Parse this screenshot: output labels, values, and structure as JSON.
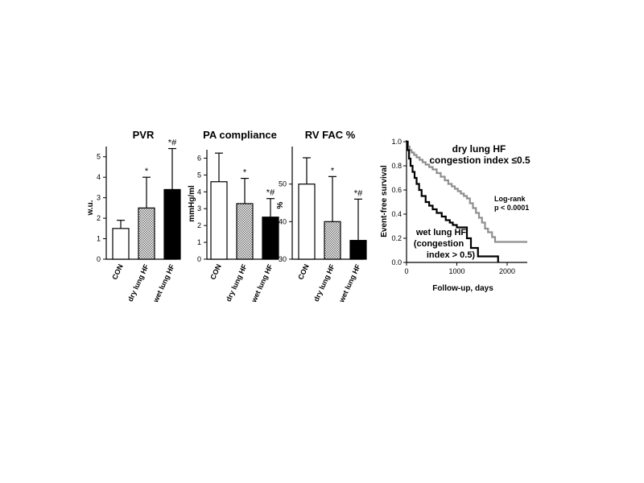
{
  "colors": {
    "con": "#ffffff",
    "dry": "#9a9a9a",
    "wet": "#000000",
    "survival_dry": "#8f8f8f",
    "survival_wet": "#000000"
  },
  "chart_data": [
    {
      "type": "bar",
      "title": "PVR",
      "ylabel": "w.u.",
      "categories": [
        "CON",
        "dry lung HF",
        "wet lung HF"
      ],
      "values": [
        1.5,
        2.5,
        3.4
      ],
      "errors": [
        0.4,
        1.5,
        2.0
      ],
      "significance": [
        "",
        "*",
        "*#"
      ],
      "ylim": [
        0,
        5.5
      ],
      "yticks": [
        0,
        1,
        2,
        3,
        4,
        5
      ],
      "fills": [
        "white",
        "hatched",
        "black"
      ]
    },
    {
      "type": "bar",
      "title": "PA compliance",
      "ylabel": "mmHg/ml",
      "categories": [
        "CON",
        "dry lung HF",
        "wet lung HF"
      ],
      "values": [
        4.6,
        3.3,
        2.5
      ],
      "errors": [
        1.7,
        1.5,
        1.1
      ],
      "significance": [
        "",
        "*",
        "*#"
      ],
      "ylim": [
        0,
        6.5
      ],
      "yticks": [
        0,
        1,
        2,
        3,
        4,
        5,
        6
      ],
      "fills": [
        "white",
        "hatched",
        "black"
      ]
    },
    {
      "type": "bar",
      "title": "RV FAC %",
      "ylabel": "%",
      "categories": [
        "CON",
        "dry lung HF",
        "wet lung HF"
      ],
      "values": [
        50,
        40,
        35
      ],
      "errors": [
        7,
        12,
        11
      ],
      "significance": [
        "",
        "*",
        "*#"
      ],
      "ylim": [
        30,
        60
      ],
      "yticks": [
        30,
        40,
        50
      ],
      "fills": [
        "white",
        "hatched",
        "black"
      ]
    },
    {
      "type": "line",
      "subtype": "kaplan-meier",
      "ylabel": "Event-free survival",
      "xlabel": "Follow-up, days",
      "xlim": [
        0,
        2400
      ],
      "ylim": [
        0,
        1.0
      ],
      "xticks": [
        0,
        1000,
        2000
      ],
      "yticks": [
        0.0,
        0.2,
        0.4,
        0.6,
        0.8,
        1.0
      ],
      "series": [
        {
          "id": "dry",
          "x": [
            0,
            30,
            60,
            100,
            150,
            200,
            260,
            320,
            380,
            450,
            520,
            600,
            680,
            760,
            830,
            900,
            960,
            1020,
            1080,
            1140,
            1200,
            1260,
            1320,
            1380,
            1440,
            1500,
            1560,
            1620,
            1700,
            1760,
            1820,
            1900,
            2400
          ],
          "y": [
            1.0,
            0.96,
            0.93,
            0.91,
            0.89,
            0.87,
            0.85,
            0.83,
            0.81,
            0.79,
            0.77,
            0.74,
            0.71,
            0.68,
            0.65,
            0.63,
            0.61,
            0.59,
            0.57,
            0.55,
            0.53,
            0.49,
            0.45,
            0.41,
            0.37,
            0.33,
            0.28,
            0.25,
            0.21,
            0.17,
            0.17,
            0.17,
            0.17
          ]
        },
        {
          "id": "wet",
          "x": [
            0,
            20,
            50,
            80,
            120,
            160,
            200,
            250,
            300,
            380,
            450,
            520,
            600,
            700,
            780,
            860,
            920,
            1000,
            1100,
            1200,
            1280,
            1350,
            1420,
            1500,
            1600,
            1700,
            1820
          ],
          "y": [
            1.0,
            0.93,
            0.86,
            0.8,
            0.75,
            0.7,
            0.65,
            0.6,
            0.55,
            0.5,
            0.47,
            0.44,
            0.41,
            0.38,
            0.35,
            0.33,
            0.31,
            0.29,
            0.29,
            0.2,
            0.12,
            0.12,
            0.05,
            0.05,
            0.05,
            0.05,
            0.0
          ]
        }
      ],
      "annotations": {
        "dry_line1": "dry lung HF",
        "dry_line2": "congestion  index ≤0.5",
        "wet_line1": "wet lung HF",
        "wet_line2": "(congestion",
        "wet_line3": "index > 0.5)",
        "logrank1": "Log-rank",
        "logrank2": "p < 0.0001"
      }
    }
  ]
}
